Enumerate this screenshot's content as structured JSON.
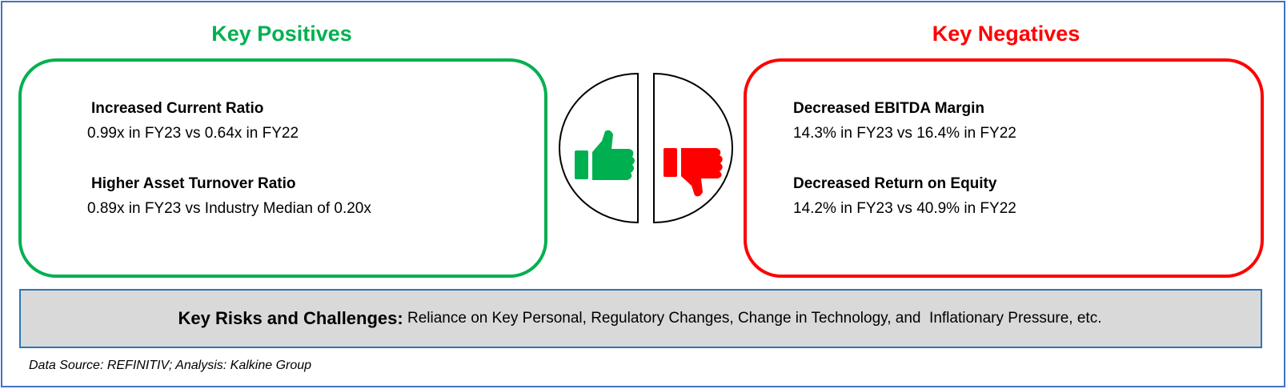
{
  "positives": {
    "title": "Key Positives",
    "items": [
      {
        "heading": "Increased Current Ratio",
        "detail": "0.99x in FY23 vs 0.64x in FY22"
      },
      {
        "heading": "Higher Asset Turnover Ratio",
        "detail": "0.89x in FY23 vs Industry Median of 0.20x"
      }
    ]
  },
  "negatives": {
    "title": "Key Negatives",
    "items": [
      {
        "heading": "Decreased EBITDA Margin",
        "detail": "14.3% in FY23 vs 16.4% in FY22"
      },
      {
        "heading": "Decreased Return on Equity",
        "detail": "14.2% in FY23 vs 40.9% in FY22"
      }
    ]
  },
  "risks": {
    "label": "Key Risks and Challenges:",
    "text": "Reliance on Key Personal, Regulatory Changes, Change in Technology, and  Inflationary Pressure, etc."
  },
  "footer": {
    "source": "Data Source: REFINITIV; Analysis: Kalkine Group"
  }
}
